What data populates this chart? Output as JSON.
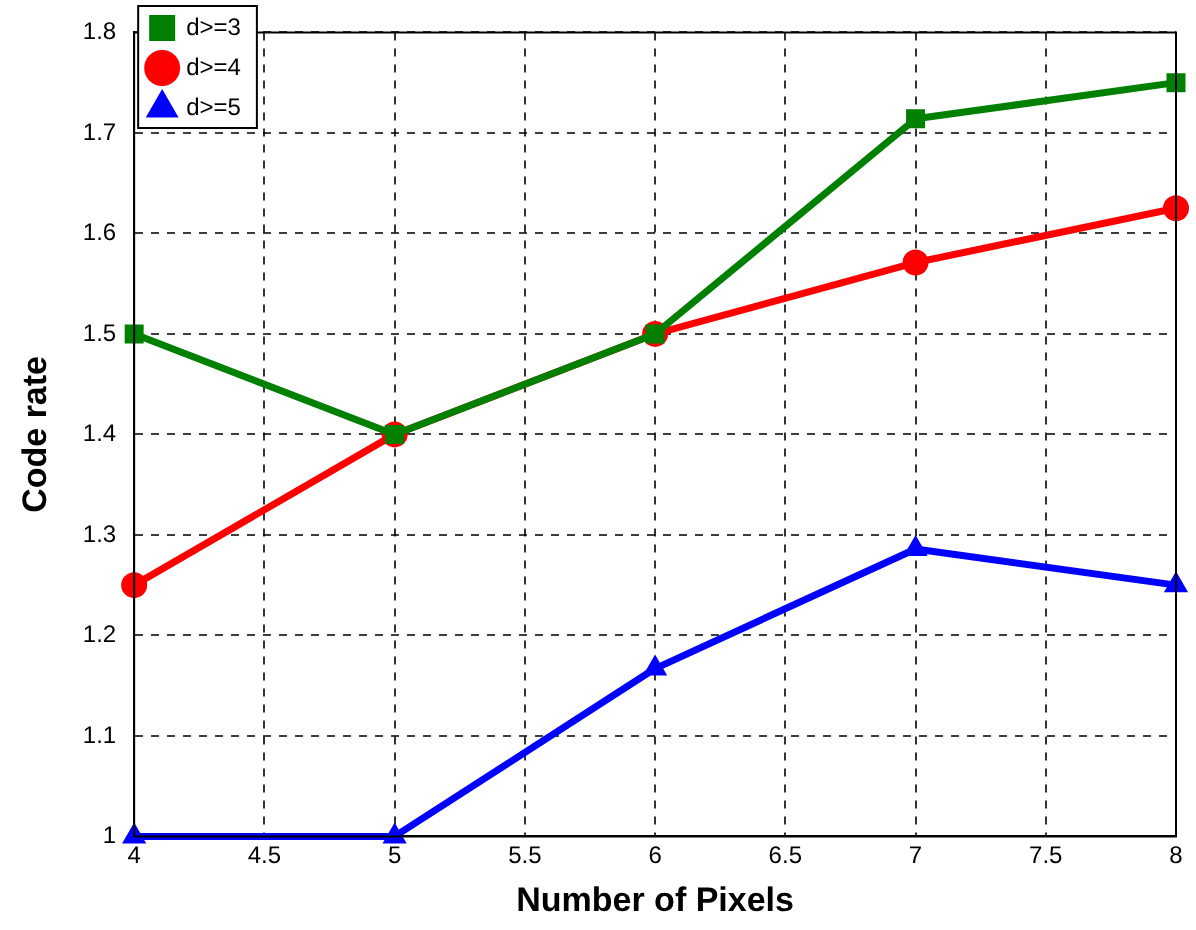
{
  "chart_data": {
    "type": "line",
    "xlabel": "Number of Pixels",
    "ylabel": "Code rate",
    "x": [
      4,
      5,
      6,
      7,
      8
    ],
    "series": [
      {
        "name": "d>=5",
        "color": "#0000ff",
        "values": [
          1,
          1,
          1.167,
          1.286,
          1.25
        ],
        "marker": "triangle"
      },
      {
        "name": "d>=4",
        "color": "#ff0000",
        "values": [
          1.25,
          1.4,
          1.5,
          1.571,
          1.625
        ],
        "marker": "circle"
      },
      {
        "name": "d>=3",
        "color": "#008000",
        "values": [
          1.5,
          1.4,
          1.5,
          1.714,
          1.75
        ],
        "marker": "square"
      }
    ],
    "xlim": [
      4,
      8
    ],
    "xticks": [
      4,
      4.5,
      5,
      5.5,
      6,
      6.5,
      7,
      7.5,
      8
    ],
    "ylim": [
      1,
      1.8
    ],
    "yticks": [
      1,
      1.1,
      1.2,
      1.3,
      1.4,
      1.5,
      1.6,
      1.7,
      1.8
    ],
    "grid": true,
    "legend": "top left",
    "line_style": "solid"
  }
}
